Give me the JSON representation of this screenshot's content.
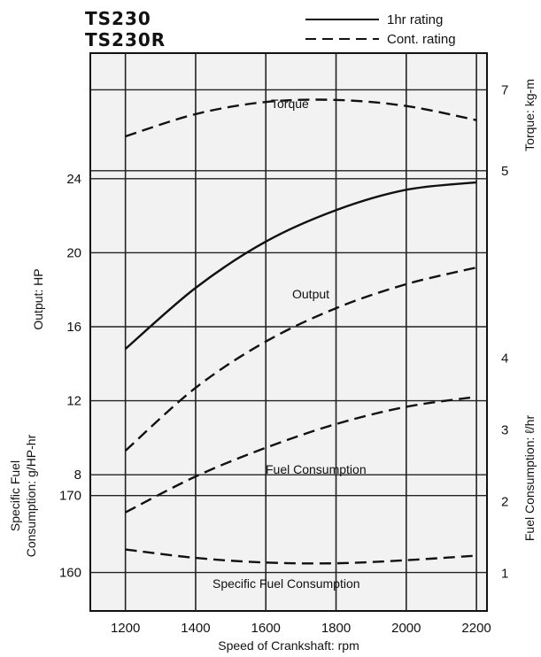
{
  "header": {
    "model_1": "TS230",
    "model_2": "TS230R",
    "legend_solid": "1hr rating",
    "legend_dashed": "Cont. rating"
  },
  "chart_data": {
    "type": "line",
    "x": [
      1200,
      1400,
      1600,
      1800,
      2000,
      2200
    ],
    "xlabel": "Speed of Crankshaft: rpm",
    "xlim": [
      1100,
      2230
    ],
    "x_ticks": [
      "1200",
      "1400",
      "1600",
      "1800",
      "2000",
      "2200"
    ],
    "grid": true,
    "legend_position": "top-right",
    "axes": {
      "torque": {
        "label": "Torque: kg-m",
        "side": "right",
        "ticks": [
          "5",
          "7"
        ],
        "range": [
          4.1,
          7.6
        ]
      },
      "output": {
        "label": "Output: HP",
        "side": "left",
        "ticks": [
          "12",
          "16",
          "20",
          "24"
        ],
        "range": [
          6,
          26
        ]
      },
      "specific_fuel": {
        "label": "Specific Fuel Consumption: g/HP-hr",
        "side": "left",
        "ticks": [
          "160",
          "170"
        ],
        "range": [
          155,
          174
        ]
      },
      "fuel": {
        "label": "Fuel Consumption: ℓ/hr",
        "side": "right",
        "ticks": [
          "1",
          "2",
          "3",
          "4"
        ],
        "range": [
          0.6,
          4.3
        ]
      },
      "output_secondary_ticks": [
        "8"
      ]
    },
    "series": [
      {
        "axis": "torque",
        "style": "dashed",
        "label": "Torque",
        "x": [
          1200,
          1400,
          1600,
          1800,
          2000,
          2200
        ],
        "values": [
          5.85,
          6.4,
          6.7,
          6.75,
          6.6,
          6.25
        ]
      },
      {
        "axis": "output",
        "style": "solid",
        "x": [
          1200,
          1400,
          1600,
          1800,
          2000,
          2200
        ],
        "values": [
          14.8,
          18.1,
          20.6,
          22.3,
          23.4,
          23.8
        ]
      },
      {
        "axis": "output",
        "style": "dashed",
        "label": "Output",
        "x": [
          1200,
          1400,
          1600,
          1800,
          2000,
          2200
        ],
        "values": [
          9.3,
          12.7,
          15.2,
          17.0,
          18.3,
          19.2
        ]
      },
      {
        "axis": "fuel",
        "style": "dashed",
        "label": "Fuel Consumption",
        "x": [
          1200,
          1400,
          1600,
          1800,
          2000,
          2200
        ],
        "values": [
          1.85,
          2.35,
          2.75,
          3.08,
          3.32,
          3.46
        ]
      },
      {
        "axis": "specific_fuel",
        "style": "dashed",
        "label": "Specific Fuel Consumption",
        "x": [
          1200,
          1400,
          1600,
          1800,
          2000,
          2200
        ],
        "values": [
          163.0,
          161.9,
          161.3,
          161.2,
          161.6,
          162.2
        ]
      }
    ]
  }
}
